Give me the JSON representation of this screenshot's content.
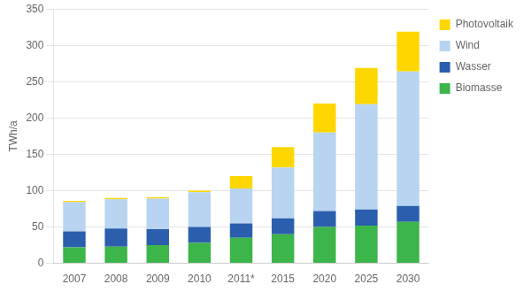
{
  "chart_data": {
    "type": "bar",
    "categories": [
      "2007",
      "2008",
      "2009",
      "2010",
      "2011*",
      "2015",
      "2020",
      "2025",
      "2030"
    ],
    "series": [
      {
        "name": "Biomasse",
        "color": "#3cb54a",
        "values": [
          22,
          23,
          25,
          28,
          35,
          40,
          50,
          52,
          57
        ]
      },
      {
        "name": "Wasser",
        "color": "#2b5fad",
        "values": [
          22,
          25,
          22,
          22,
          20,
          22,
          22,
          22,
          22
        ]
      },
      {
        "name": "Wind",
        "color": "#b8d4f0",
        "values": [
          40,
          40,
          42,
          48,
          48,
          70,
          108,
          145,
          185
        ]
      },
      {
        "name": "Photovoltaik",
        "color": "#ffd700",
        "values": [
          2,
          2,
          2,
          2,
          17,
          28,
          40,
          50,
          55
        ]
      }
    ],
    "ylabel": "TWh/a",
    "ylim": [
      0,
      350
    ],
    "yticks": [
      0,
      50,
      100,
      150,
      200,
      250,
      300,
      350
    ],
    "stacked": true,
    "grid": true,
    "legend": "right"
  }
}
